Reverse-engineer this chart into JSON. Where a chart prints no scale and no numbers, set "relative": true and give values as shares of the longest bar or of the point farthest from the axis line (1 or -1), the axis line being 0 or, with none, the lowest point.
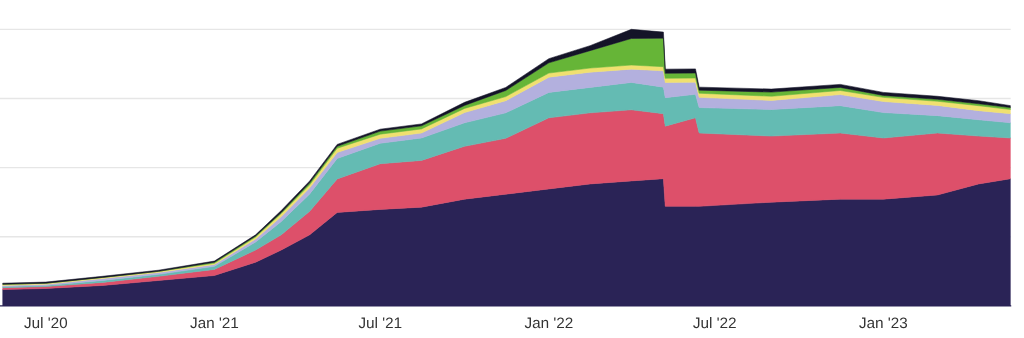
{
  "chart_data": {
    "type": "area",
    "stacked": true,
    "relative": true,
    "grid": "y",
    "x": [
      "2020-05-15",
      "2020-07-01",
      "2020-09-01",
      "2020-11-01",
      "2021-01-01",
      "2021-02-15",
      "2021-03-15",
      "2021-04-15",
      "2021-05-15",
      "2021-07-01",
      "2021-08-15",
      "2021-10-01",
      "2021-11-15",
      "2022-01-01",
      "2022-02-15",
      "2022-04-01",
      "2022-05-06",
      "2022-05-08",
      "2022-06-10",
      "2022-06-14",
      "2022-09-01",
      "2022-11-15",
      "2023-01-01",
      "2023-03-01",
      "2023-04-15",
      "2023-05-20"
    ],
    "xlim": [
      "2020-05-12",
      "2023-05-20"
    ],
    "xticks": [
      {
        "value": "2020-07-01",
        "label": "Jul '20"
      },
      {
        "value": "2021-01-01",
        "label": "Jan '21"
      },
      {
        "value": "2021-07-01",
        "label": "Jul '21"
      },
      {
        "value": "2022-01-01",
        "label": "Jan '22"
      },
      {
        "value": "2022-07-01",
        "label": "Jul '22"
      },
      {
        "value": "2023-01-01",
        "label": "Jan '23"
      }
    ],
    "series": [
      {
        "color": "#2a2356",
        "values": [
          0.059,
          0.063,
          0.074,
          0.092,
          0.11,
          0.158,
          0.202,
          0.257,
          0.338,
          0.349,
          0.357,
          0.386,
          0.404,
          0.423,
          0.441,
          0.452,
          0.46,
          0.36,
          0.36,
          0.36,
          0.375,
          0.386,
          0.386,
          0.401,
          0.441,
          0.46
        ]
      },
      {
        "color": "#dd506a",
        "values": [
          0.007,
          0.007,
          0.011,
          0.015,
          0.022,
          0.044,
          0.055,
          0.085,
          0.121,
          0.165,
          0.169,
          0.191,
          0.202,
          0.257,
          0.257,
          0.257,
          0.235,
          0.29,
          0.32,
          0.265,
          0.239,
          0.239,
          0.221,
          0.224,
          0.173,
          0.147
        ]
      },
      {
        "color": "#64bbb3",
        "values": [
          0.004,
          0.004,
          0.007,
          0.007,
          0.011,
          0.029,
          0.048,
          0.063,
          0.074,
          0.074,
          0.081,
          0.085,
          0.092,
          0.092,
          0.092,
          0.099,
          0.096,
          0.103,
          0.085,
          0.092,
          0.096,
          0.099,
          0.092,
          0.063,
          0.059,
          0.055
        ]
      },
      {
        "color": "#b3b0de",
        "values": [
          0.004,
          0.004,
          0.007,
          0.007,
          0.007,
          0.011,
          0.018,
          0.022,
          0.022,
          0.018,
          0.018,
          0.037,
          0.044,
          0.055,
          0.055,
          0.048,
          0.059,
          0.055,
          0.044,
          0.037,
          0.033,
          0.04,
          0.04,
          0.037,
          0.033,
          0.033
        ]
      },
      {
        "color": "#f0e070",
        "values": [
          0.004,
          0.004,
          0.004,
          0.004,
          0.004,
          0.007,
          0.011,
          0.011,
          0.015,
          0.015,
          0.015,
          0.015,
          0.015,
          0.015,
          0.015,
          0.015,
          0.015,
          0.015,
          0.015,
          0.015,
          0.015,
          0.015,
          0.015,
          0.015,
          0.018,
          0.015
        ]
      },
      {
        "color": "#66b537",
        "values": [
          0,
          0,
          0,
          0,
          0.004,
          0.004,
          0.004,
          0.007,
          0.007,
          0.011,
          0.011,
          0.011,
          0.022,
          0.037,
          0.063,
          0.096,
          0.103,
          0.018,
          0.018,
          0.011,
          0.015,
          0.011,
          0.007,
          0.007,
          0.007,
          0.007
        ]
      },
      {
        "color": "#141428",
        "values": [
          0.004,
          0.004,
          0.004,
          0.004,
          0.004,
          0.004,
          0.007,
          0.007,
          0.007,
          0.007,
          0.007,
          0.011,
          0.011,
          0.015,
          0.018,
          0.033,
          0.022,
          0.015,
          0.015,
          0.011,
          0.011,
          0.011,
          0.011,
          0.011,
          0.011,
          0.007
        ]
      }
    ]
  }
}
